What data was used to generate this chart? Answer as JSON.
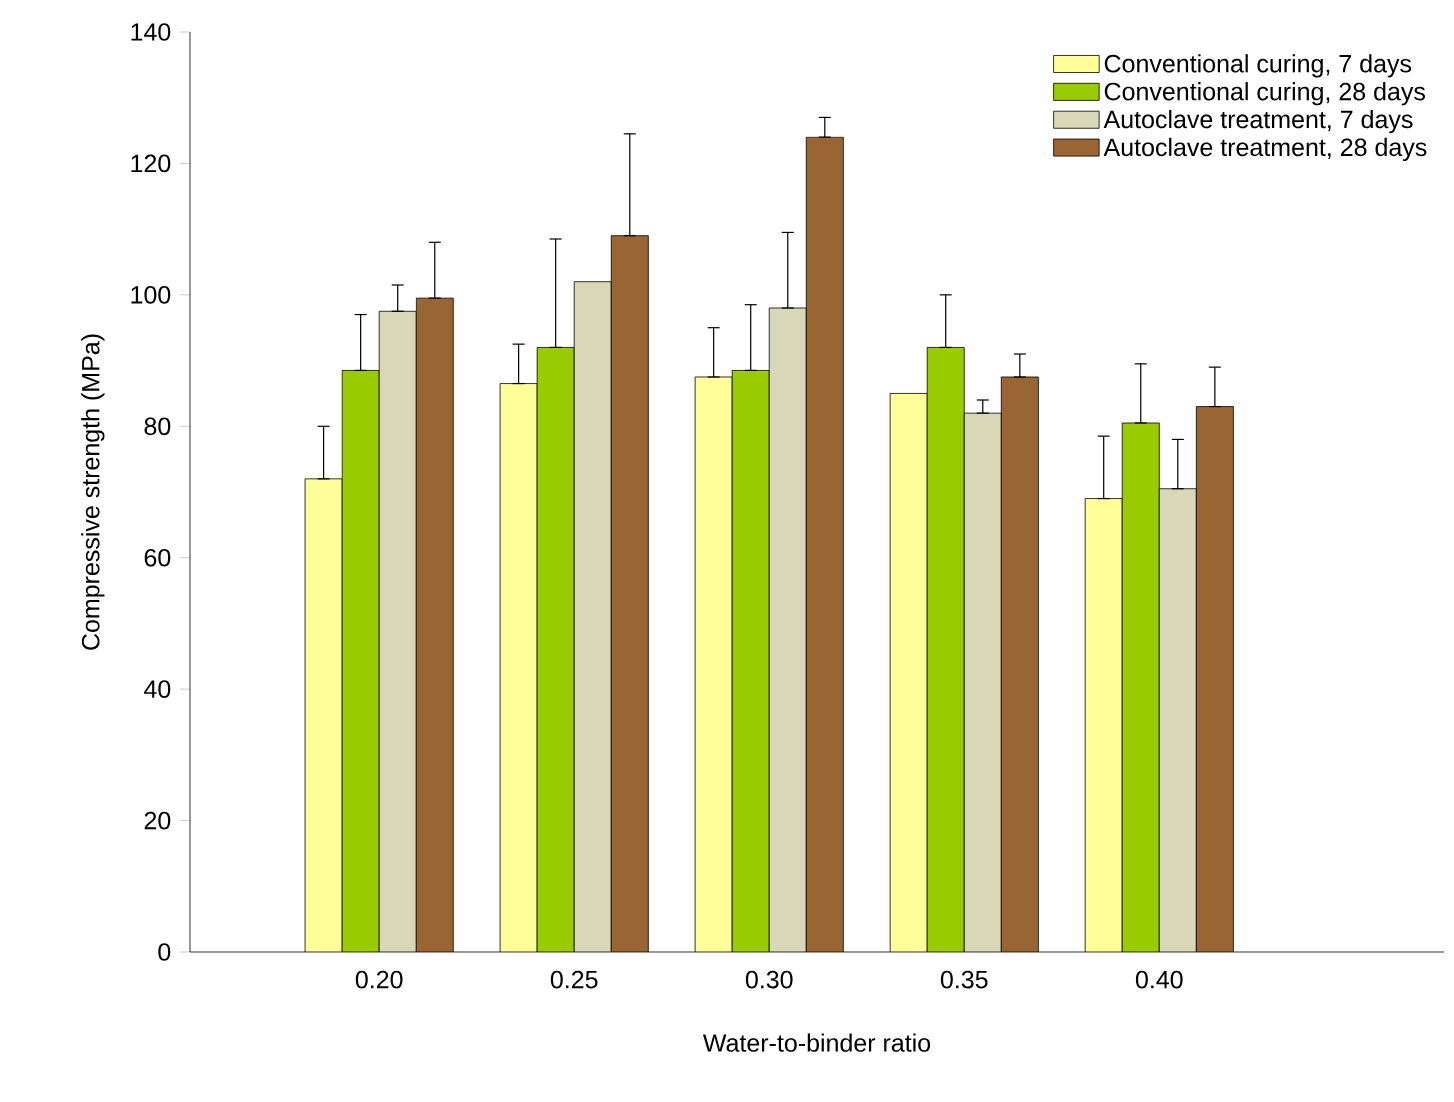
{
  "chart_data": {
    "type": "bar",
    "xlabel": "Water-to-binder ratio",
    "ylabel": "Compressive strength (MPa)",
    "categories": [
      "0.20",
      "0.25",
      "0.30",
      "0.35",
      "0.40"
    ],
    "series": [
      {
        "name": "Conventional curing, 7 days",
        "color": "#ffff99",
        "values": [
          72,
          86.5,
          87.5,
          85,
          69
        ],
        "errors": [
          [
            72,
            80
          ],
          [
            86.5,
            92.5
          ],
          [
            87.5,
            95
          ],
          null,
          [
            69,
            78.5
          ]
        ]
      },
      {
        "name": "Conventional curing, 28 days",
        "color": "#99cc00",
        "values": [
          88.5,
          92,
          88.5,
          92,
          80.5
        ],
        "errors": [
          [
            88.5,
            97
          ],
          [
            92,
            108.5
          ],
          [
            88.5,
            98.5
          ],
          [
            92,
            100
          ],
          [
            80.5,
            89.5
          ]
        ]
      },
      {
        "name": "Autoclave treatment, 7 days",
        "color": "#d8d8b8",
        "values": [
          97.5,
          102,
          98,
          82,
          70.5
        ],
        "errors": [
          [
            97.5,
            101.5
          ],
          null,
          [
            98,
            109.5
          ],
          [
            82,
            84
          ],
          [
            70.5,
            78
          ]
        ]
      },
      {
        "name": "Autoclave treatment, 28 days",
        "color": "#996633",
        "values": [
          99.5,
          109,
          124,
          87.5,
          83
        ],
        "errors": [
          [
            99.5,
            108
          ],
          [
            109,
            124.5
          ],
          [
            124,
            127
          ],
          [
            87.5,
            91
          ],
          [
            83,
            89
          ]
        ]
      }
    ],
    "ylim": [
      0,
      140
    ],
    "yticks": [
      0,
      20,
      40,
      60,
      80,
      100,
      120,
      140
    ],
    "grid": false,
    "legend": "top right"
  }
}
